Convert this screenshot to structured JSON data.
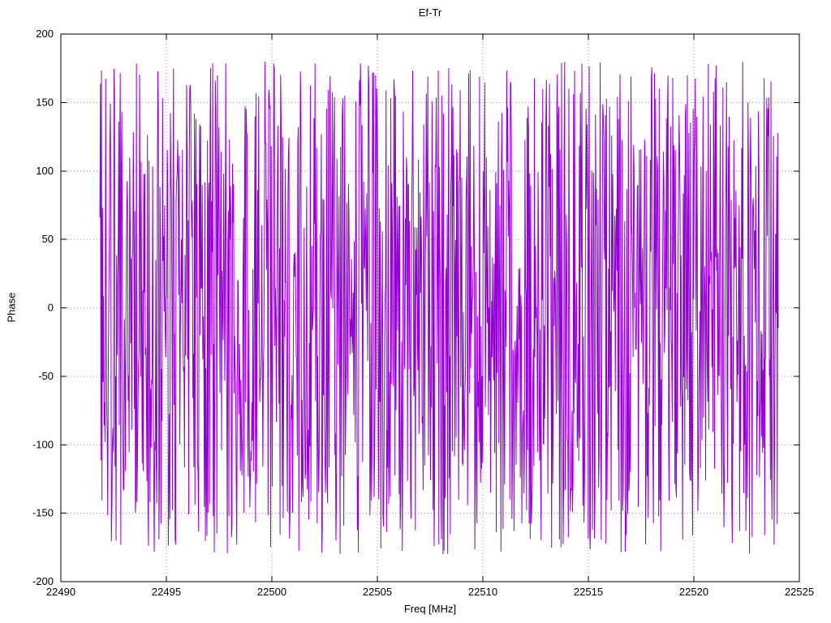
{
  "figure": {
    "background": "#ffffff"
  },
  "chart_data": {
    "type": "line",
    "title": "Ef-Tr",
    "xlabel": "Freq [MHz]",
    "ylabel": "Phase",
    "xlim": [
      22490,
      22525
    ],
    "ylim": [
      -200,
      200
    ],
    "xticks": [
      22490,
      22495,
      22500,
      22505,
      22510,
      22515,
      22520,
      22525
    ],
    "yticks": [
      -200,
      -150,
      -100,
      -50,
      0,
      50,
      100,
      150,
      200
    ],
    "grid": true,
    "grid_color": "#9a9a9a",
    "legend": "none",
    "axis_color": "#000000",
    "series": [
      {
        "name": "Ef-Tr",
        "color": "#9400d3",
        "description": "dense wrapped phase noise oscillating across full -180..180 deg range",
        "x_start": 22491.85,
        "x_end": 22524.0,
        "n_points": 1300,
        "y_min": -180,
        "y_max": 180,
        "seed": 20231207,
        "walk_step": 160
      }
    ]
  }
}
